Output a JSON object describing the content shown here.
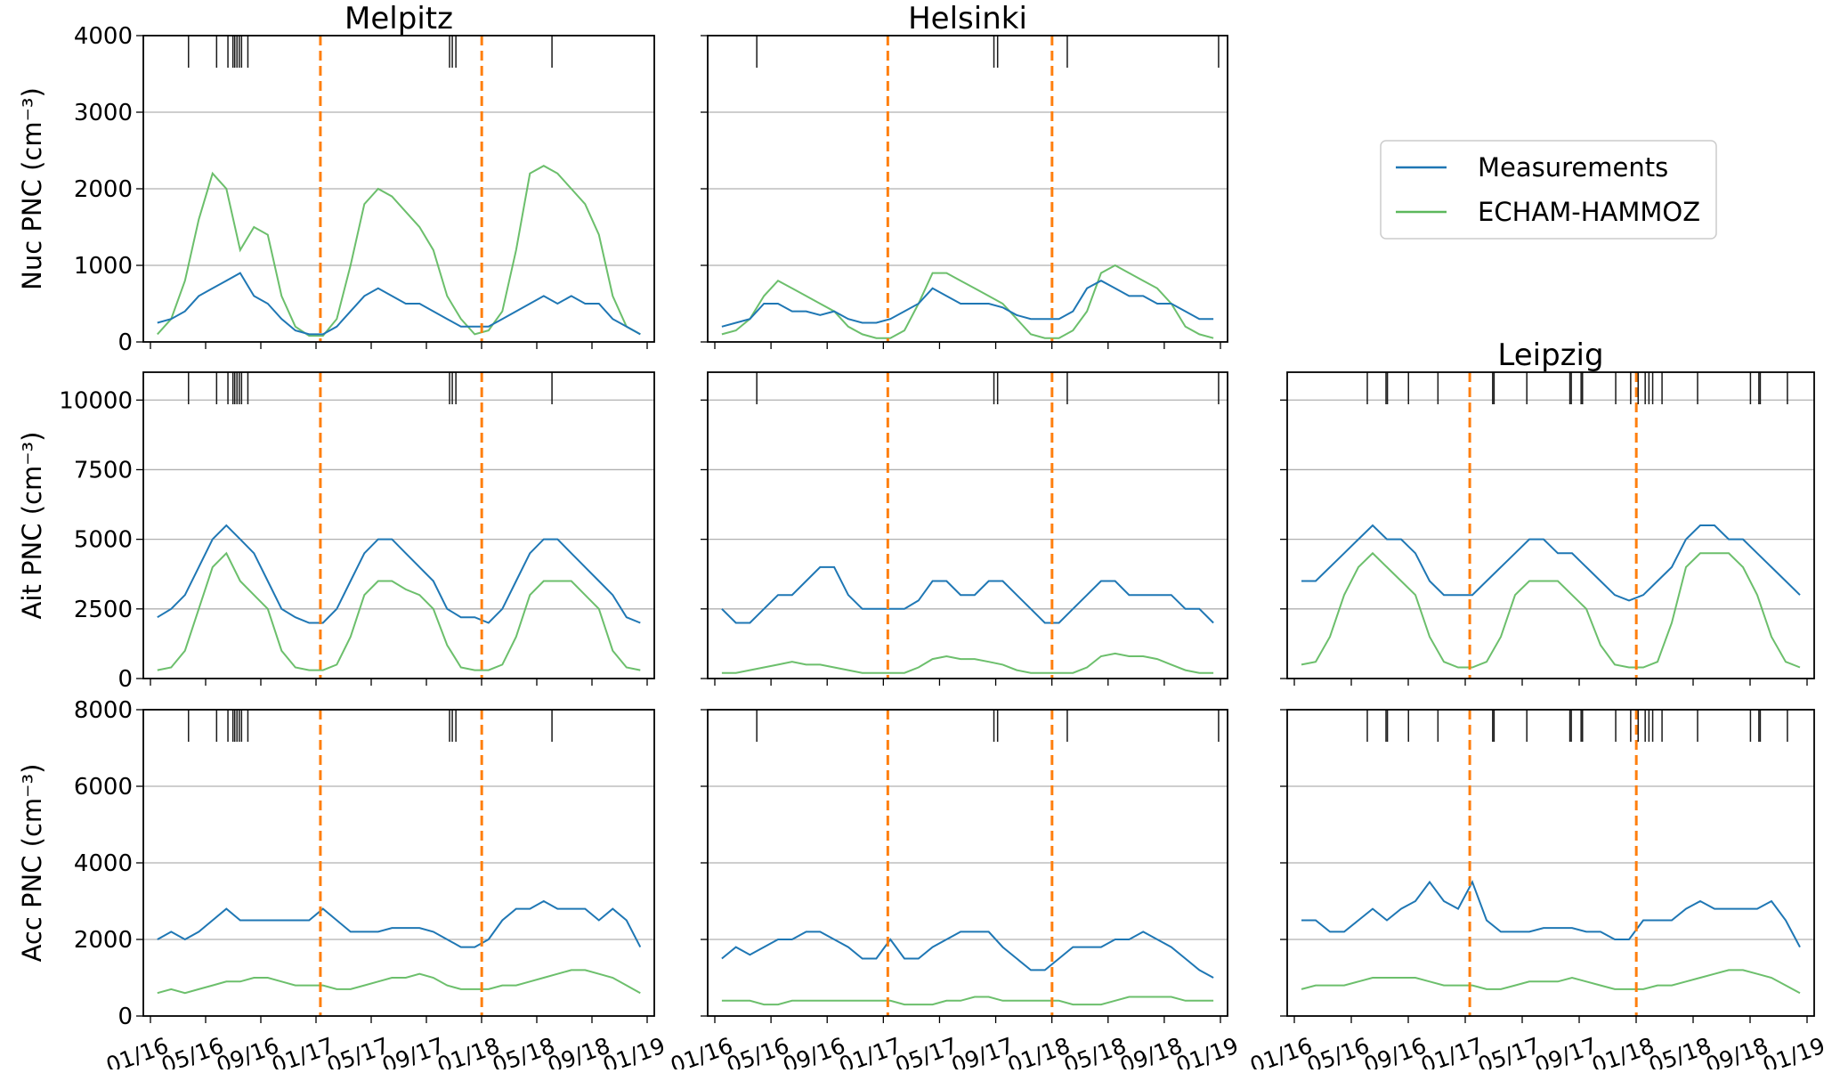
{
  "chart_data": {
    "type": "line",
    "x_tick_labels": [
      "01/16",
      "05/16",
      "09/16",
      "01/17",
      "05/17",
      "09/17",
      "01/18",
      "05/18",
      "09/18",
      "01/19"
    ],
    "x_range": [
      "2016-01-01",
      "2019-01-01"
    ],
    "x_resolution": "monthly",
    "grid": "horizontal",
    "legend": {
      "placement": "right",
      "entries": [
        "Measurements",
        "ECHAM-HAMMOZ"
      ]
    },
    "colors": {
      "Measurements": "#1f77b4",
      "ECHAM-HAMMOZ": "#5cb85c",
      "period_marker": "#ff7f0e",
      "gap_marker": "#1a1a1a"
    },
    "period_markers": [
      "2017-01-10",
      "2018-01-01"
    ],
    "rows": [
      {
        "ylabel": "Nuc PNC (cm⁻³)",
        "ylim": [
          0,
          4000
        ],
        "yticks": [
          0,
          1000,
          2000,
          3000,
          4000
        ]
      },
      {
        "ylabel": "Ait PNC (cm⁻³)",
        "ylim": [
          0,
          11000
        ],
        "yticks": [
          0,
          2500,
          5000,
          7500,
          10000
        ]
      },
      {
        "ylabel": "Acc PNC (cm⁻³)",
        "ylim": [
          0,
          8000
        ],
        "yticks": [
          0,
          2000,
          4000,
          6000,
          8000
        ]
      }
    ],
    "sites": [
      {
        "title": "Melpitz",
        "col": 0,
        "gaps": [
          "2016-03-25",
          "2016-05-26",
          "2016-06-20",
          "2016-07-01",
          "2016-07-05",
          "2016-07-10",
          "2016-07-15",
          "2016-07-20",
          "2016-08-03",
          "2017-10-22",
          "2017-10-28",
          "2017-11-05",
          "2018-06-05"
        ]
      },
      {
        "title": "Helsinki",
        "col": 1,
        "gaps": [
          "2016-04-01",
          "2017-08-28",
          "2017-09-05",
          "2018-02-03",
          "2018-12-28"
        ]
      },
      {
        "title": "Leipzig",
        "col": 2,
        "gaps": [
          "2016-06-05",
          "2016-07-15",
          "2016-07-18",
          "2016-09-01",
          "2016-11-03",
          "2017-02-28",
          "2017-03-03",
          "2017-05-12",
          "2017-08-12",
          "2017-08-15",
          "2017-09-05",
          "2017-09-08",
          "2017-11-18",
          "2017-12-20",
          "2018-01-05",
          "2018-01-20",
          "2018-01-28",
          "2018-02-05",
          "2018-02-25",
          "2018-05-12",
          "2018-09-02",
          "2018-09-20",
          "2018-09-23",
          "2018-11-20"
        ]
      }
    ],
    "panels": [
      {
        "site": "Melpitz",
        "row": 0,
        "Measurements": [
          250,
          300,
          400,
          600,
          700,
          800,
          900,
          600,
          500,
          300,
          150,
          100,
          100,
          200,
          400,
          600,
          700,
          600,
          500,
          500,
          400,
          300,
          200,
          200,
          200,
          300,
          400,
          500,
          600,
          500,
          600,
          500,
          500,
          300,
          200,
          100
        ],
        "ECHAM-HAMMOZ": [
          100,
          300,
          800,
          1600,
          2200,
          2000,
          1200,
          1500,
          1400,
          600,
          200,
          80,
          80,
          300,
          1000,
          1800,
          2000,
          1900,
          1700,
          1500,
          1200,
          600,
          300,
          100,
          150,
          400,
          1200,
          2200,
          2300,
          2200,
          2000,
          1800,
          1400,
          600,
          200,
          100
        ]
      },
      {
        "site": "Helsinki",
        "row": 0,
        "Measurements": [
          200,
          250,
          300,
          500,
          500,
          400,
          400,
          350,
          400,
          300,
          250,
          250,
          300,
          400,
          500,
          700,
          600,
          500,
          500,
          500,
          450,
          350,
          300,
          300,
          300,
          400,
          700,
          800,
          700,
          600,
          600,
          500,
          500,
          400,
          300,
          300
        ],
        "ECHAM-HAMMOZ": [
          100,
          150,
          300,
          600,
          800,
          700,
          600,
          500,
          400,
          200,
          100,
          50,
          50,
          150,
          500,
          900,
          900,
          800,
          700,
          600,
          500,
          300,
          100,
          50,
          50,
          150,
          400,
          900,
          1000,
          900,
          800,
          700,
          500,
          200,
          100,
          50
        ]
      },
      {
        "site": "Melpitz",
        "row": 1,
        "Measurements": [
          2200,
          2500,
          3000,
          4000,
          5000,
          5500,
          5000,
          4500,
          3500,
          2500,
          2200,
          2000,
          2000,
          2500,
          3500,
          4500,
          5000,
          5000,
          4500,
          4000,
          3500,
          2500,
          2200,
          2200,
          2000,
          2500,
          3500,
          4500,
          5000,
          5000,
          4500,
          4000,
          3500,
          3000,
          2200,
          2000
        ],
        "ECHAM-HAMMOZ": [
          300,
          400,
          1000,
          2500,
          4000,
          4500,
          3500,
          3000,
          2500,
          1000,
          400,
          300,
          300,
          500,
          1500,
          3000,
          3500,
          3500,
          3200,
          3000,
          2500,
          1200,
          400,
          300,
          300,
          500,
          1500,
          3000,
          3500,
          3500,
          3500,
          3000,
          2500,
          1000,
          400,
          300
        ]
      },
      {
        "site": "Helsinki",
        "row": 1,
        "Measurements": [
          2500,
          2000,
          2000,
          2500,
          3000,
          3000,
          3500,
          4000,
          4000,
          3000,
          2500,
          2500,
          2500,
          2500,
          2800,
          3500,
          3500,
          3000,
          3000,
          3500,
          3500,
          3000,
          2500,
          2000,
          2000,
          2500,
          3000,
          3500,
          3500,
          3000,
          3000,
          3000,
          3000,
          2500,
          2500,
          2000
        ],
        "ECHAM-HAMMOZ": [
          200,
          200,
          300,
          400,
          500,
          600,
          500,
          500,
          400,
          300,
          200,
          200,
          200,
          200,
          400,
          700,
          800,
          700,
          700,
          600,
          500,
          300,
          200,
          200,
          200,
          200,
          400,
          800,
          900,
          800,
          800,
          700,
          500,
          300,
          200,
          200
        ]
      },
      {
        "site": "Leipzig",
        "row": 1,
        "Measurements": [
          3500,
          3500,
          4000,
          4500,
          5000,
          5500,
          5000,
          5000,
          4500,
          3500,
          3000,
          3000,
          3000,
          3500,
          4000,
          4500,
          5000,
          5000,
          4500,
          4500,
          4000,
          3500,
          3000,
          2800,
          3000,
          3500,
          4000,
          5000,
          5500,
          5500,
          5000,
          5000,
          4500,
          4000,
          3500,
          3000
        ],
        "ECHAM-HAMMOZ": [
          500,
          600,
          1500,
          3000,
          4000,
          4500,
          4000,
          3500,
          3000,
          1500,
          600,
          400,
          400,
          600,
          1500,
          3000,
          3500,
          3500,
          3500,
          3000,
          2500,
          1200,
          500,
          400,
          400,
          600,
          2000,
          4000,
          4500,
          4500,
          4500,
          4000,
          3000,
          1500,
          600,
          400
        ]
      },
      {
        "site": "Melpitz",
        "row": 2,
        "Measurements": [
          2000,
          2200,
          2000,
          2200,
          2500,
          2800,
          2500,
          2500,
          2500,
          2500,
          2500,
          2500,
          2800,
          2500,
          2200,
          2200,
          2200,
          2300,
          2300,
          2300,
          2200,
          2000,
          1800,
          1800,
          2000,
          2500,
          2800,
          2800,
          3000,
          2800,
          2800,
          2800,
          2500,
          2800,
          2500,
          1800
        ],
        "ECHAM-HAMMOZ": [
          600,
          700,
          600,
          700,
          800,
          900,
          900,
          1000,
          1000,
          900,
          800,
          800,
          800,
          700,
          700,
          800,
          900,
          1000,
          1000,
          1100,
          1000,
          800,
          700,
          700,
          700,
          800,
          800,
          900,
          1000,
          1100,
          1200,
          1200,
          1100,
          1000,
          800,
          600
        ]
      },
      {
        "site": "Helsinki",
        "row": 2,
        "Measurements": [
          1500,
          1800,
          1600,
          1800,
          2000,
          2000,
          2200,
          2200,
          2000,
          1800,
          1500,
          1500,
          2000,
          1500,
          1500,
          1800,
          2000,
          2200,
          2200,
          2200,
          1800,
          1500,
          1200,
          1200,
          1500,
          1800,
          1800,
          1800,
          2000,
          2000,
          2200,
          2000,
          1800,
          1500,
          1200,
          1000
        ],
        "ECHAM-HAMMOZ": [
          400,
          400,
          400,
          300,
          300,
          400,
          400,
          400,
          400,
          400,
          400,
          400,
          400,
          300,
          300,
          300,
          400,
          400,
          500,
          500,
          400,
          400,
          400,
          400,
          400,
          300,
          300,
          300,
          400,
          500,
          500,
          500,
          500,
          400,
          400,
          400
        ]
      },
      {
        "site": "Leipzig",
        "row": 2,
        "Measurements": [
          2500,
          2500,
          2200,
          2200,
          2500,
          2800,
          2500,
          2800,
          3000,
          3500,
          3000,
          2800,
          3500,
          2500,
          2200,
          2200,
          2200,
          2300,
          2300,
          2300,
          2200,
          2200,
          2000,
          2000,
          2500,
          2500,
          2500,
          2800,
          3000,
          2800,
          2800,
          2800,
          2800,
          3000,
          2500,
          1800
        ],
        "ECHAM-HAMMOZ": [
          700,
          800,
          800,
          800,
          900,
          1000,
          1000,
          1000,
          1000,
          900,
          800,
          800,
          800,
          700,
          700,
          800,
          900,
          900,
          900,
          1000,
          900,
          800,
          700,
          700,
          700,
          800,
          800,
          900,
          1000,
          1100,
          1200,
          1200,
          1100,
          1000,
          800,
          600
        ]
      }
    ]
  }
}
